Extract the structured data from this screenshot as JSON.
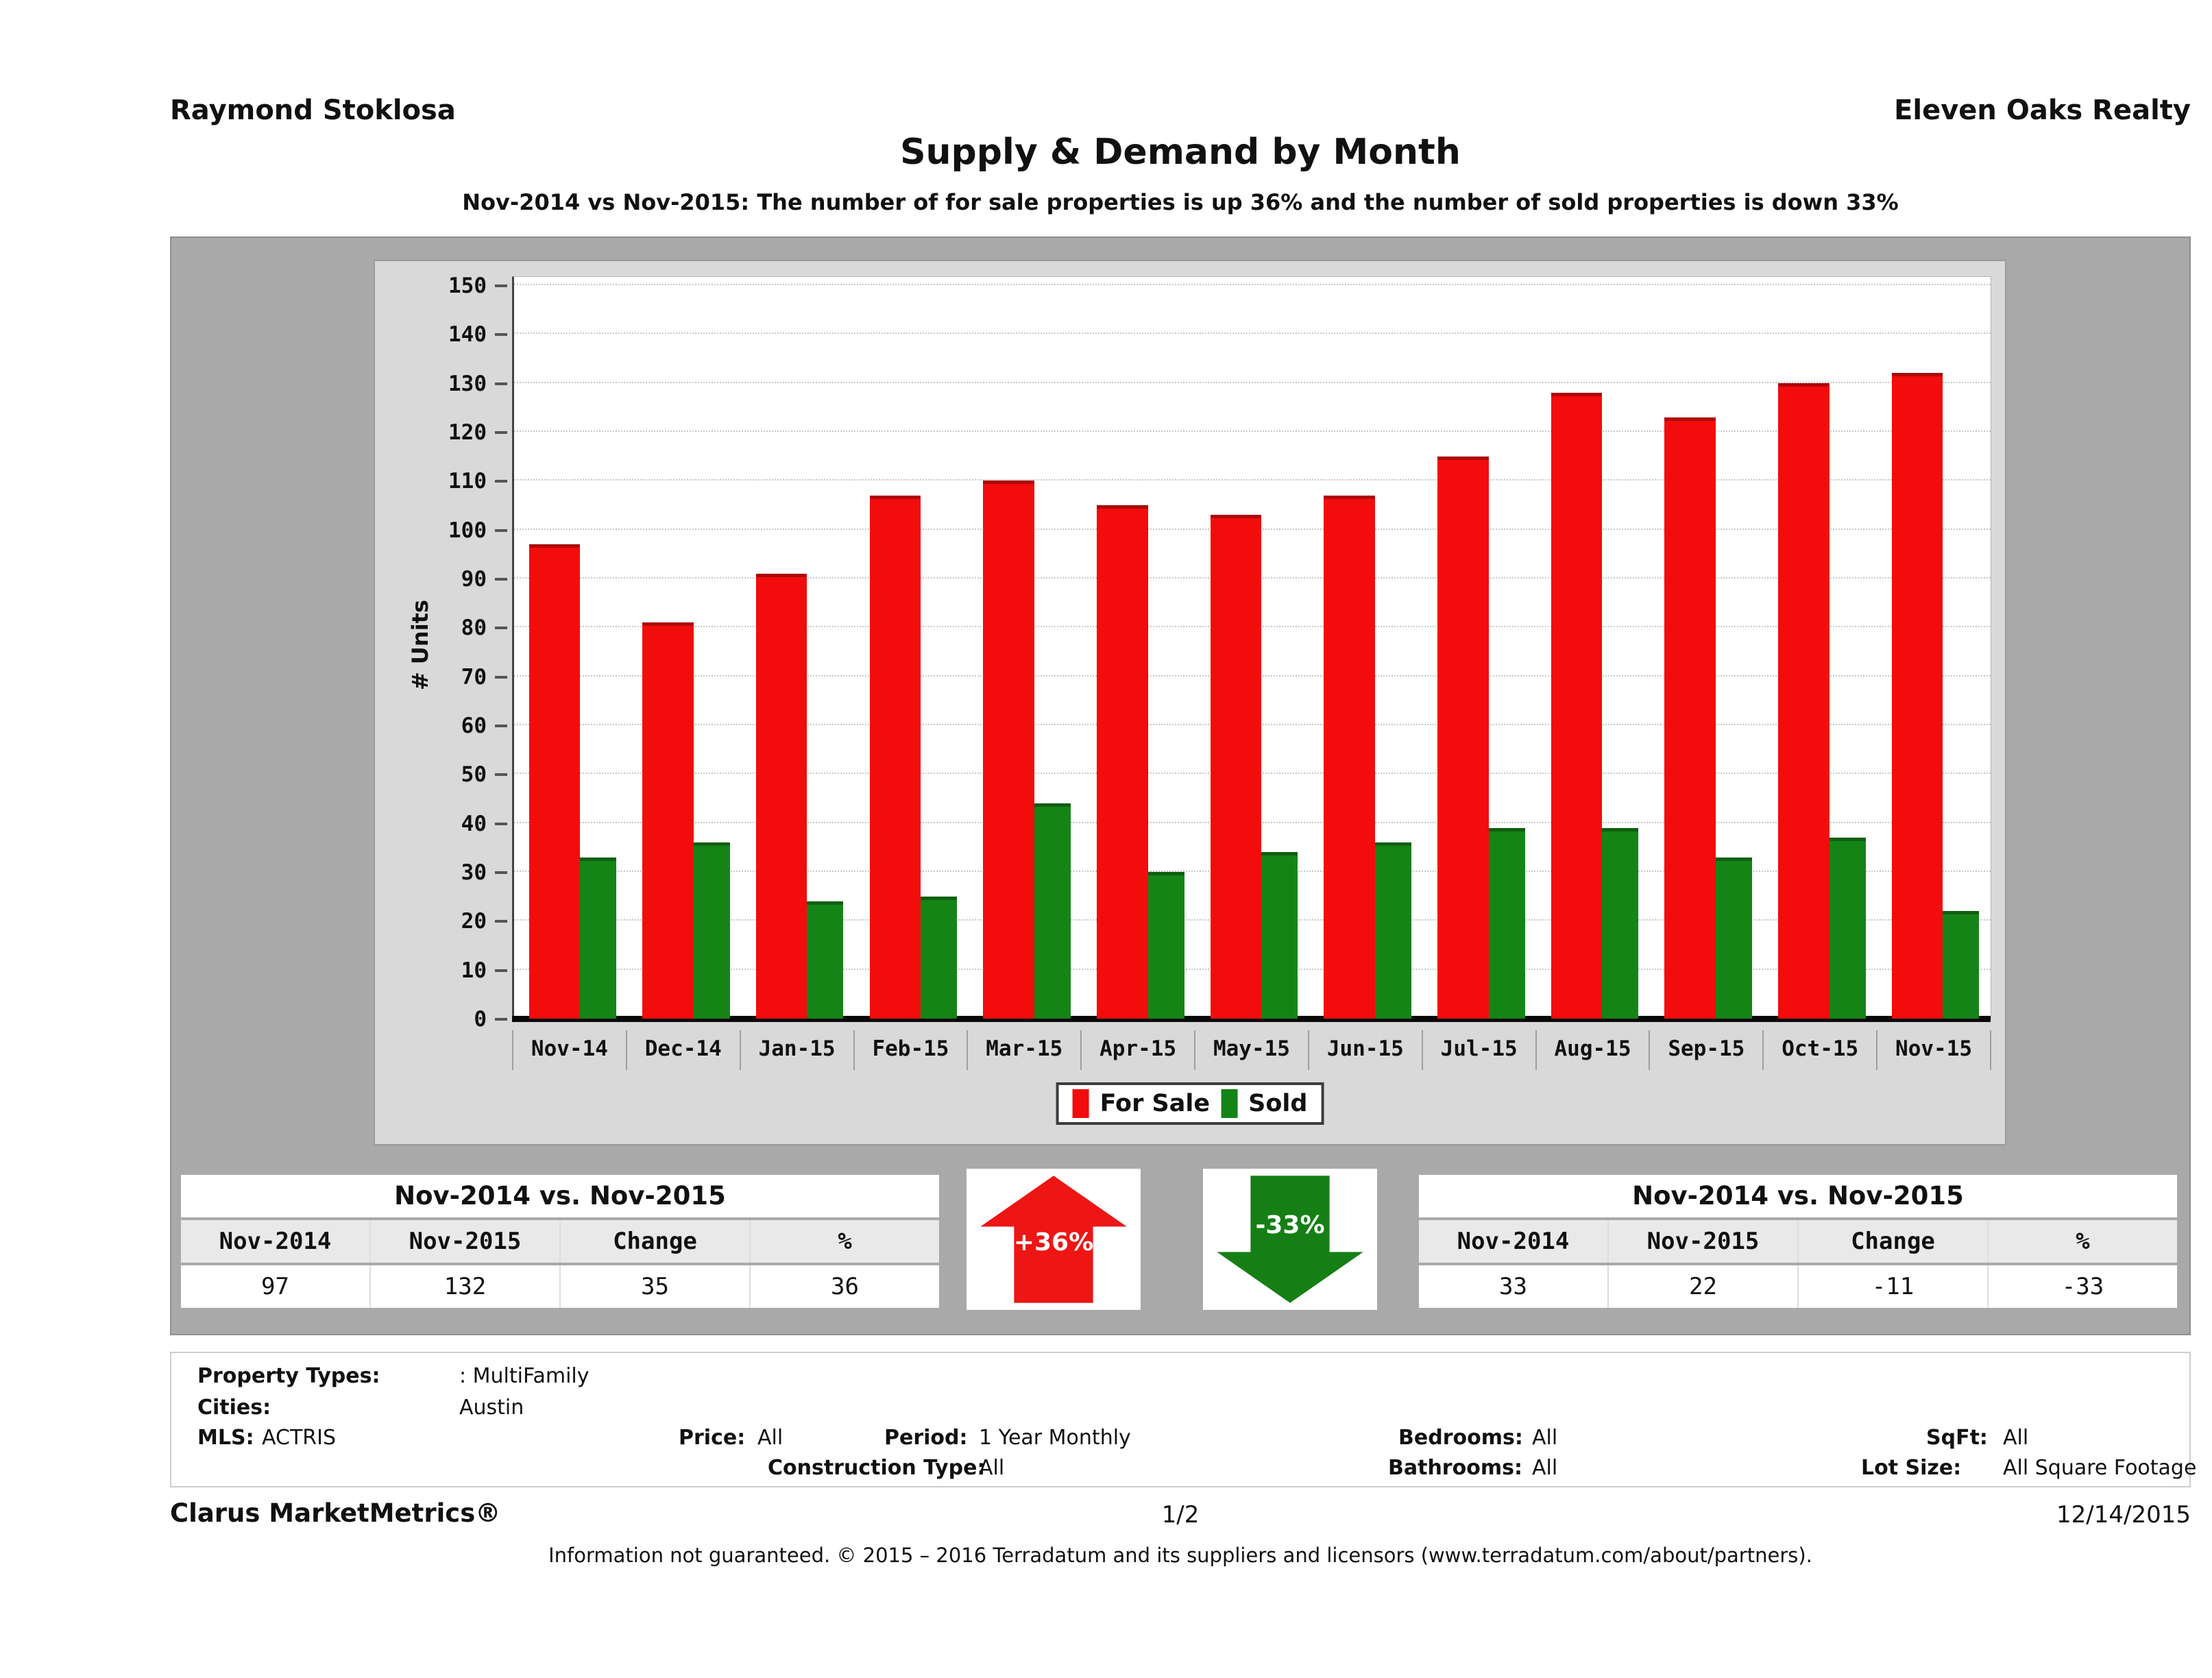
{
  "header": {
    "agent": "Raymond Stoklosa",
    "company": "Eleven Oaks Realty",
    "title": "Supply & Demand by Month",
    "subtitle": "Nov-2014 vs Nov-2015: The number of for sale properties is up 36% and the number of sold properties is down 33%"
  },
  "chart_data": {
    "type": "bar",
    "title": "Supply & Demand by Month",
    "ylabel": "# Units",
    "ylim": [
      0,
      150
    ],
    "ytick_step": 10,
    "grid": "horizontal-dotted",
    "legend_position": "bottom",
    "categories": [
      "Nov-14",
      "Dec-14",
      "Jan-15",
      "Feb-15",
      "Mar-15",
      "Apr-15",
      "May-15",
      "Jun-15",
      "Jul-15",
      "Aug-15",
      "Sep-15",
      "Oct-15",
      "Nov-15"
    ],
    "series": [
      {
        "name": "For Sale",
        "color": "#f20c0c",
        "values": [
          97,
          81,
          91,
          107,
          110,
          105,
          103,
          107,
          115,
          128,
          123,
          130,
          132
        ]
      },
      {
        "name": "Sold",
        "color": "#158417",
        "values": [
          33,
          36,
          24,
          25,
          44,
          30,
          34,
          36,
          39,
          39,
          33,
          37,
          22
        ]
      }
    ]
  },
  "legend": {
    "for_sale": "For Sale",
    "sold": "Sold"
  },
  "comparison_left": {
    "title": "Nov-2014 vs. Nov-2015",
    "headers": [
      "Nov-2014",
      "Nov-2015",
      "Change",
      "%"
    ],
    "values": [
      "97",
      "132",
      "35",
      "36"
    ]
  },
  "comparison_right": {
    "title": "Nov-2014 vs. Nov-2015",
    "headers": [
      "Nov-2014",
      "Nov-2015",
      "Change",
      "%"
    ],
    "values": [
      "33",
      "22",
      "-11",
      "-33"
    ]
  },
  "arrows": {
    "up_label": "+36%",
    "up_color": "#ee1515",
    "down_label": "-33%",
    "down_color": "#157f15"
  },
  "filters": {
    "property_types_label": "Property Types:",
    "property_types": ": MultiFamily",
    "cities_label": "Cities:",
    "cities": "Austin",
    "mls_label": "MLS:",
    "mls": "ACTRIS",
    "price_label": "Price:",
    "price": "All",
    "period_label": "Period:",
    "period": "1 Year Monthly",
    "construction_label": "Construction Type:",
    "construction": "All",
    "bedrooms_label": "Bedrooms:",
    "bedrooms": "All",
    "bathrooms_label": "Bathrooms:",
    "bathrooms": "All",
    "sqft_label": "SqFt:",
    "sqft": "All",
    "lot_label": "Lot Size:",
    "lot": "All Square Footage"
  },
  "footer": {
    "brand": "Clarus MarketMetrics®",
    "page": "1/2",
    "date": "12/14/2015",
    "disclaimer": "Information not guaranteed. © 2015 – 2016 Terradatum and its suppliers and licensors (www.terradatum.com/about/partners)."
  }
}
